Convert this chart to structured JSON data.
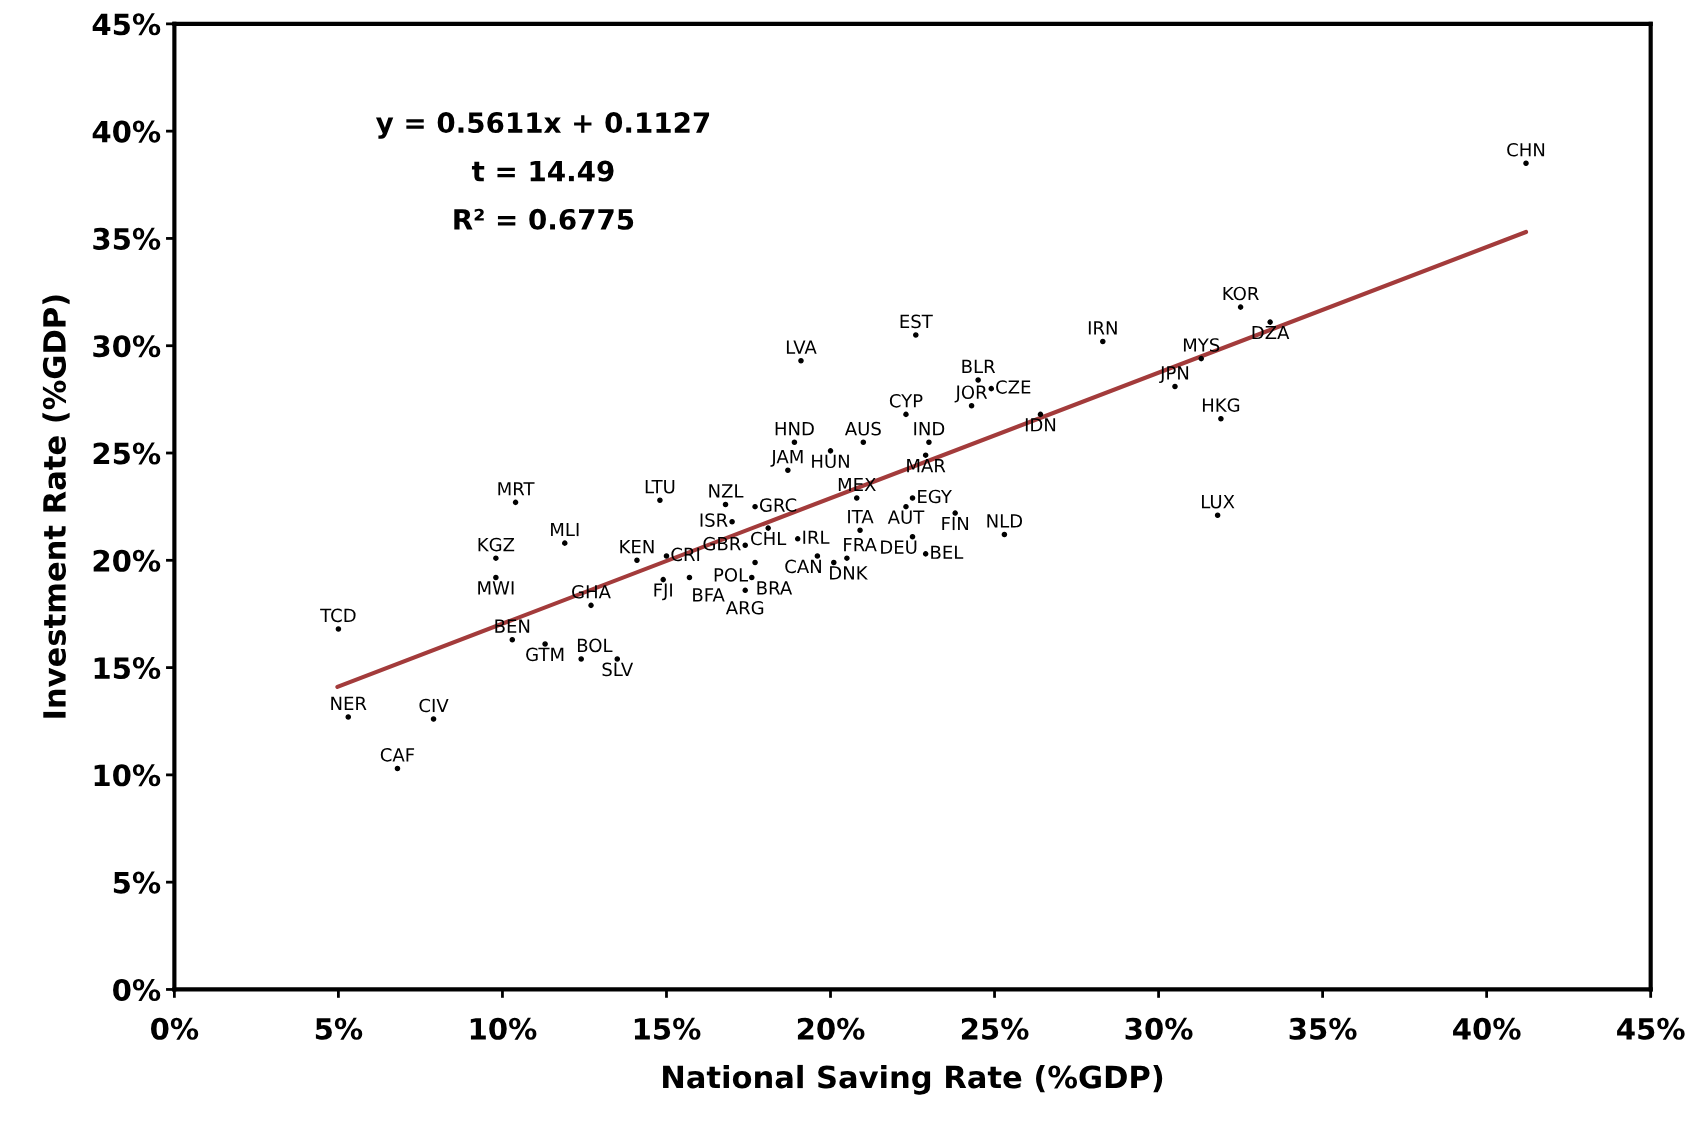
{
  "chart_data": {
    "type": "scatter",
    "xlabel": "National Saving Rate (%GDP)",
    "ylabel": "Investment Rate (%GDP)",
    "annotations": [
      {
        "text": "y = 0.5611x + 0.1127"
      },
      {
        "text": "t = 14.49"
      },
      {
        "text": "R² = 0.6775"
      }
    ],
    "xlim": [
      0,
      45
    ],
    "ylim": [
      0,
      45
    ],
    "xticks": [
      {
        "value": 0,
        "label": "0%"
      },
      {
        "value": 5,
        "label": "5%"
      },
      {
        "value": 10,
        "label": "10%"
      },
      {
        "value": 15,
        "label": "15%"
      },
      {
        "value": 20,
        "label": "20%"
      },
      {
        "value": 25,
        "label": "25%"
      },
      {
        "value": 30,
        "label": "30%"
      },
      {
        "value": 35,
        "label": "35%"
      },
      {
        "value": 40,
        "label": "40%"
      },
      {
        "value": 45,
        "label": "45%"
      }
    ],
    "yticks": [
      {
        "value": 0,
        "label": "0%"
      },
      {
        "value": 5,
        "label": "5%"
      },
      {
        "value": 10,
        "label": "10%"
      },
      {
        "value": 15,
        "label": "15%"
      },
      {
        "value": 20,
        "label": "20%"
      },
      {
        "value": 25,
        "label": "25%"
      },
      {
        "value": 30,
        "label": "30%"
      },
      {
        "value": 35,
        "label": "35%"
      },
      {
        "value": 40,
        "label": "40%"
      },
      {
        "value": 45,
        "label": "45%"
      }
    ],
    "grid": false,
    "series": [
      {
        "color": "#000000",
        "marker": "circle",
        "x": [
          41.2,
          32.5,
          33.4,
          28.3,
          31.3,
          30.5,
          31.9,
          31.8,
          22.6,
          19.1,
          24.5,
          24.9,
          22.3,
          24.3,
          26.4,
          18.9,
          20.0,
          21.0,
          23.0,
          22.9,
          18.7,
          14.8,
          10.4,
          16.8,
          17.7,
          20.8,
          22.5,
          22.3,
          23.8,
          17.0,
          18.1,
          11.9,
          20.9,
          22.5,
          25.3,
          22.9,
          19.0,
          9.8,
          9.8,
          14.1,
          15.0,
          17.4,
          19.6,
          20.1,
          20.5,
          17.7,
          14.9,
          15.7,
          17.6,
          17.4,
          12.7,
          5.0,
          10.3,
          11.3,
          12.4,
          13.5,
          5.3,
          7.9,
          6.8
        ],
        "values": [
          38.5,
          31.8,
          31.1,
          30.2,
          29.4,
          28.1,
          26.6,
          22.1,
          30.5,
          29.3,
          28.4,
          28.0,
          26.8,
          27.2,
          26.8,
          25.5,
          25.1,
          25.5,
          25.5,
          24.9,
          24.2,
          22.8,
          22.7,
          22.6,
          22.5,
          22.9,
          22.9,
          22.5,
          22.2,
          21.8,
          21.5,
          20.8,
          21.4,
          21.1,
          21.2,
          20.3,
          21.0,
          20.1,
          19.2,
          20.0,
          20.2,
          20.7,
          20.2,
          19.9,
          20.1,
          19.9,
          19.1,
          19.2,
          19.2,
          18.6,
          17.9,
          16.8,
          16.3,
          16.1,
          15.4,
          15.4,
          12.7,
          12.6,
          10.3
        ],
        "value_labels": [
          "CHN",
          "KOR",
          "DZA",
          "IRN",
          "MYS",
          "JPN",
          "HKG",
          "LUX",
          "EST",
          "LVA",
          "BLR",
          "CZE",
          "CYP",
          "JOR",
          "IDN",
          "HND",
          "HUN",
          "AUS",
          "IND",
          "MAR",
          "JAM",
          "LTU",
          "MRT",
          "NZL",
          "GRC",
          "MEX",
          "EGY",
          "AUT",
          "FIN",
          "ISR",
          "CHL",
          "MLI",
          "ITA",
          "DEU",
          "NLD",
          "BEL",
          "IRL",
          "KGZ",
          "MWI",
          "KEN",
          "CRI",
          "GBR",
          "CAN",
          "DNK",
          "FRA",
          "POL",
          "FJI",
          "BFA",
          "BRA",
          "ARG",
          "GHA",
          "TCD",
          "BEN",
          "GTM",
          "BOL",
          "SLV",
          "NER",
          "CIV",
          "CAF"
        ]
      },
      {
        "type": "line",
        "marker": "none",
        "color": "#a33b3b",
        "x": [
          4.97,
          41.2
        ],
        "values": [
          14.1,
          35.3
        ]
      }
    ]
  }
}
